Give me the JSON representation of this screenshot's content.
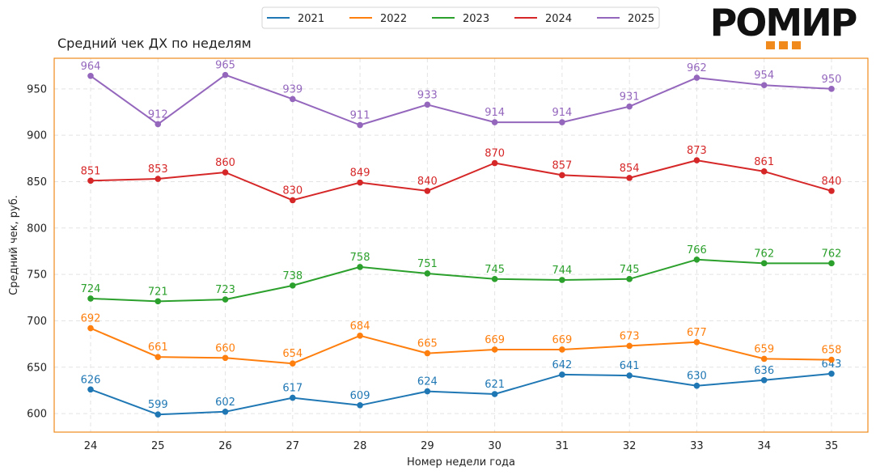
{
  "logo": {
    "text": "РОМИР",
    "accent_color": "#f08a1c"
  },
  "chart_data": {
    "type": "line",
    "title": "Средний чек ДХ по неделям",
    "xlabel": "Номер недели года",
    "ylabel": "Средний чек, руб.",
    "x": [
      24,
      25,
      26,
      27,
      28,
      29,
      30,
      31,
      32,
      33,
      34,
      35
    ],
    "ylim": [
      580,
      983
    ],
    "yticks": [
      600,
      650,
      700,
      750,
      800,
      850,
      900,
      950
    ],
    "grid": true,
    "legend_position": "top-center",
    "frame_color": "#f08a1c",
    "series": [
      {
        "name": "2021",
        "color": "#1f77b4",
        "values": [
          626,
          599,
          602,
          617,
          609,
          624,
          621,
          642,
          641,
          630,
          636,
          643
        ]
      },
      {
        "name": "2022",
        "color": "#ff7f0e",
        "values": [
          692,
          661,
          660,
          654,
          684,
          665,
          669,
          669,
          673,
          677,
          659,
          658
        ]
      },
      {
        "name": "2023",
        "color": "#2ca02c",
        "values": [
          724,
          721,
          723,
          738,
          758,
          751,
          745,
          744,
          745,
          766,
          762,
          762
        ]
      },
      {
        "name": "2024",
        "color": "#d62728",
        "values": [
          851,
          853,
          860,
          830,
          849,
          840,
          870,
          857,
          854,
          873,
          861,
          840
        ]
      },
      {
        "name": "2025",
        "color": "#9467bd",
        "values": [
          964,
          912,
          965,
          939,
          911,
          933,
          914,
          914,
          931,
          962,
          954,
          950
        ]
      }
    ]
  }
}
